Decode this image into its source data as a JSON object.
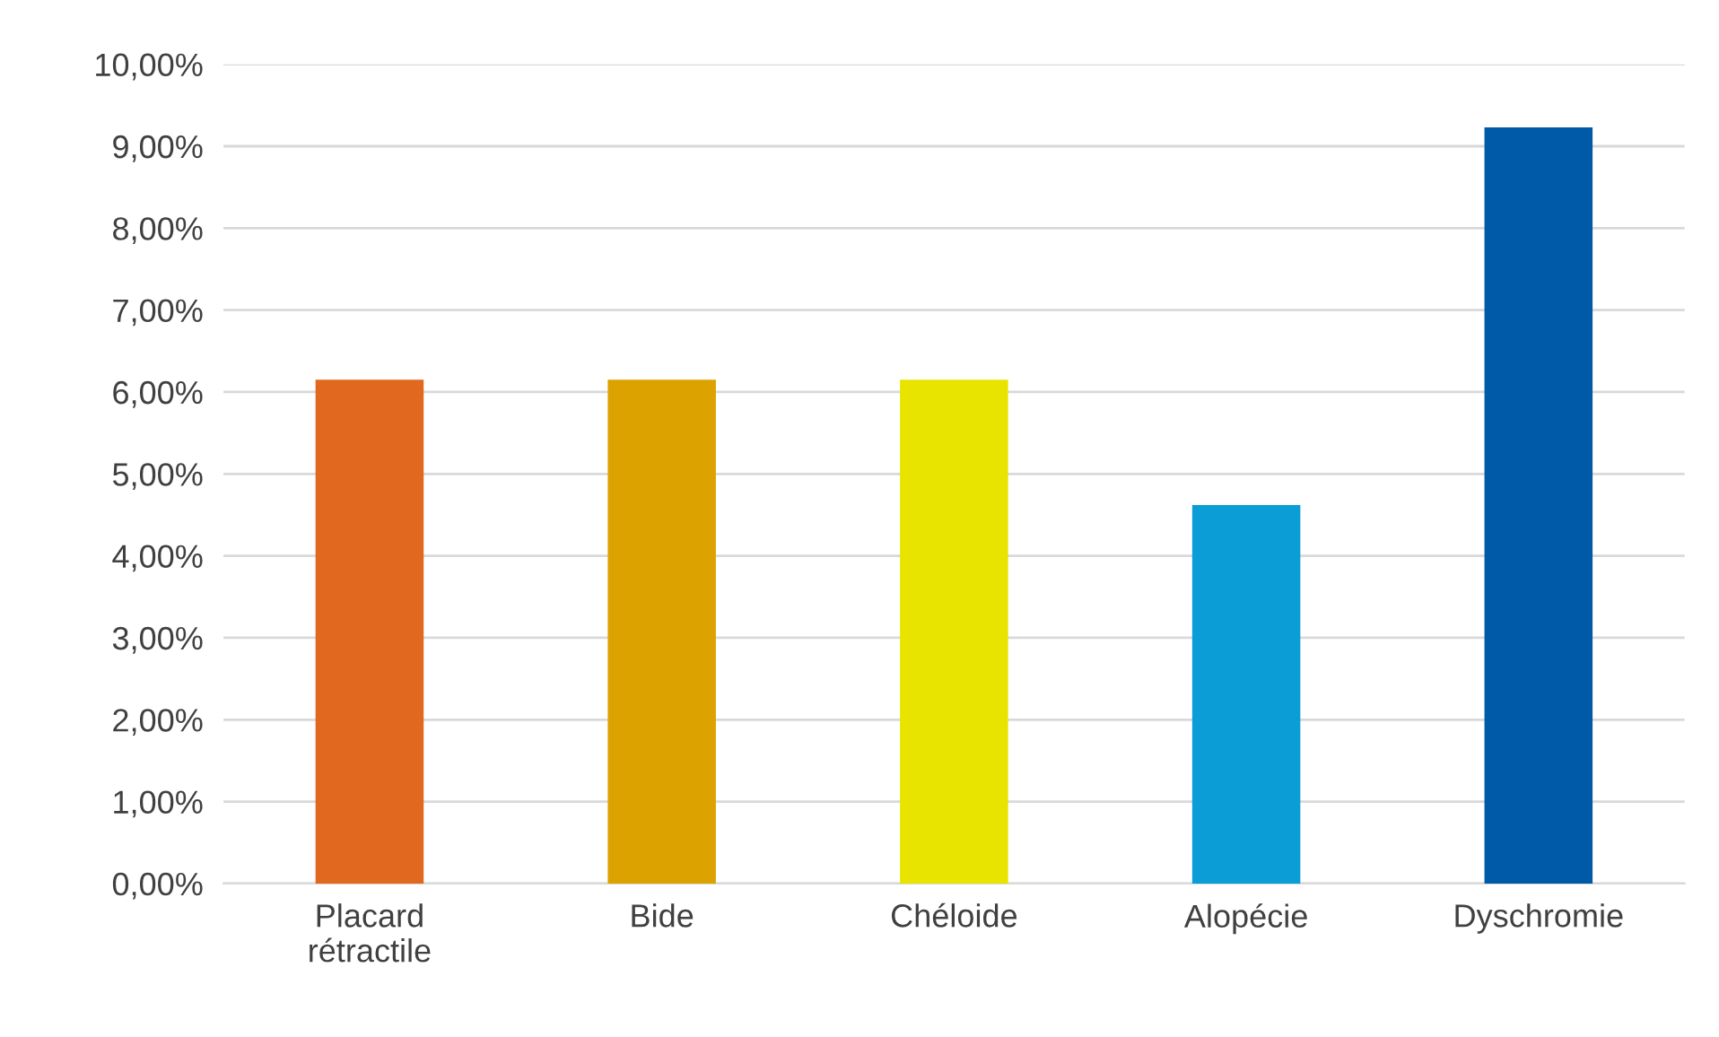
{
  "chart_data": {
    "type": "bar",
    "categories": [
      "Placard\nrétractile",
      "Bide",
      "Chéloide",
      "Alopécie",
      "Dyschromie"
    ],
    "values": [
      6.15,
      6.15,
      6.15,
      4.62,
      9.23
    ],
    "colors": [
      "#e0691f",
      "#dca300",
      "#e8e400",
      "#0a9dd6",
      "#005aa8"
    ],
    "ylim": [
      0,
      10
    ],
    "yticks": [
      {
        "value": 0,
        "label": "0,00%"
      },
      {
        "value": 1,
        "label": "1,00%"
      },
      {
        "value": 2,
        "label": "2,00%"
      },
      {
        "value": 3,
        "label": "3,00%"
      },
      {
        "value": 4,
        "label": "4,00%"
      },
      {
        "value": 5,
        "label": "5,00%"
      },
      {
        "value": 6,
        "label": "6,00%"
      },
      {
        "value": 7,
        "label": "7,00%"
      },
      {
        "value": 8,
        "label": "8,00%"
      },
      {
        "value": 9,
        "label": "9,00%"
      },
      {
        "value": 10,
        "label": "10,00%"
      }
    ],
    "grid": "y",
    "legend": false
  }
}
